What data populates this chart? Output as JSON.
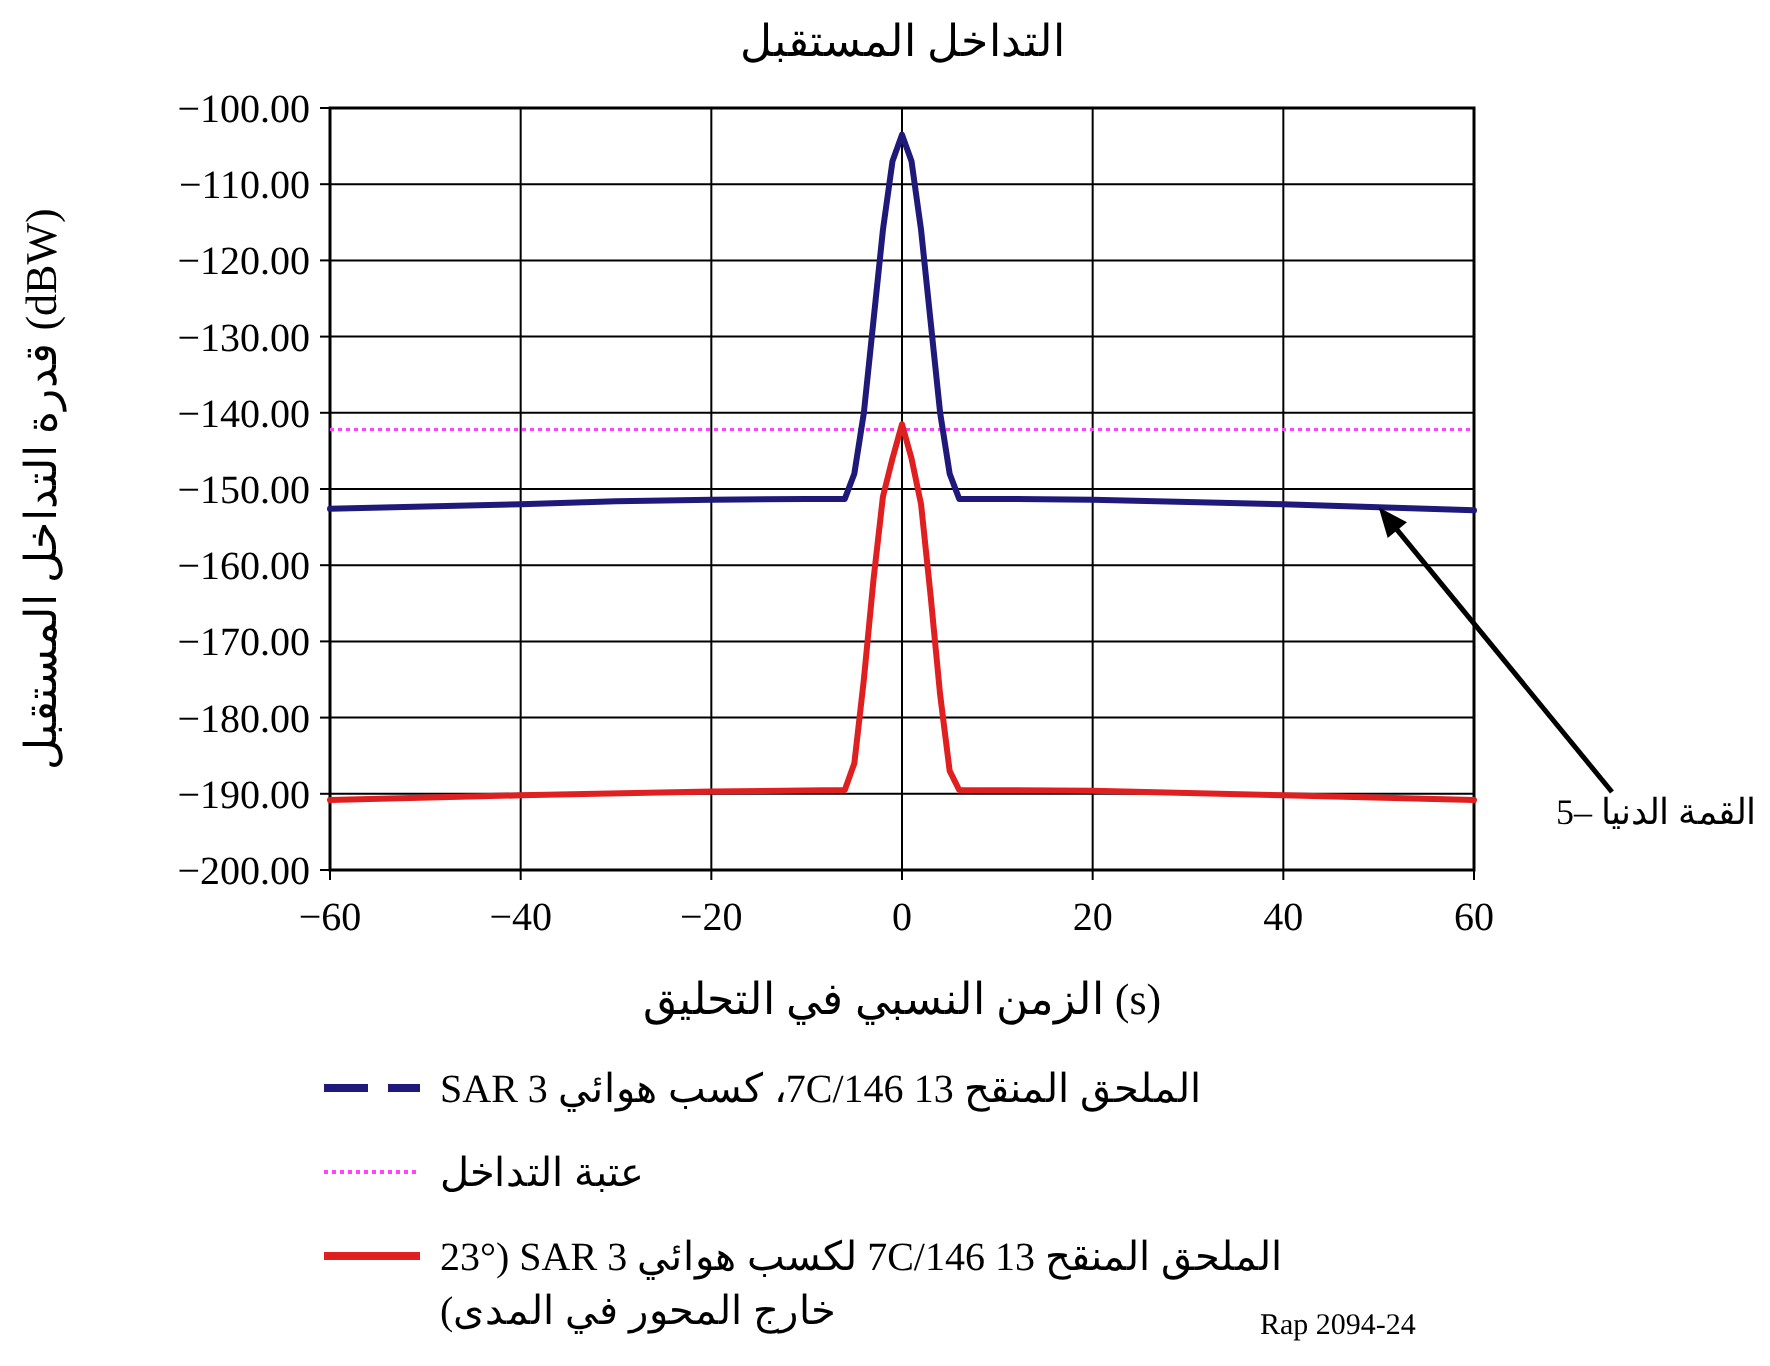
{
  "chart_data": {
    "type": "line",
    "title": "التداخل المستقبل",
    "xlabel": "الزمن النسبي في التحليق (s)",
    "ylabel": "قدرة التداخل المستقبل (dBW)",
    "xlim": [
      -60,
      60
    ],
    "xticks": [
      {
        "value": -60,
        "label": "−60"
      },
      {
        "value": -40,
        "label": "−40"
      },
      {
        "value": -20,
        "label": "−20"
      },
      0,
      20,
      40,
      60
    ],
    "ylim": [
      -200,
      -100
    ],
    "yticks": [
      {
        "value": -200,
        "label": "−200.00"
      },
      {
        "value": -190,
        "label": "−190.00"
      },
      {
        "value": -180,
        "label": "−180.00"
      },
      {
        "value": -170,
        "label": "−170.00"
      },
      {
        "value": -160,
        "label": "−160.00"
      },
      {
        "value": -150,
        "label": "−150.00"
      },
      {
        "value": -140,
        "label": "−140.00"
      },
      {
        "value": -130,
        "label": "−130.00"
      },
      {
        "value": -120,
        "label": "−120.00"
      },
      {
        "value": -110,
        "label": "−110.00"
      },
      {
        "value": -100,
        "label": "−100.00"
      }
    ],
    "grid": true,
    "legend": "bottom",
    "series": [
      {
        "name": "الملحق المنقح 13 7C/146، كسب هوائي SAR 3",
        "color": "#1f1a7a",
        "x": [
          -60,
          -50,
          -40,
          -30,
          -20,
          -10,
          -6,
          -5,
          -4,
          -3,
          -2,
          -1,
          0,
          1,
          2,
          3,
          4,
          5,
          6,
          10,
          20,
          30,
          40,
          50,
          60
        ],
        "values": [
          -152.6,
          -152.3,
          -152.0,
          -151.6,
          -151.4,
          -151.3,
          -151.3,
          -148,
          -140,
          -128,
          -116,
          -107,
          -103.5,
          -107,
          -116,
          -128,
          -140,
          -148,
          -151.3,
          -151.3,
          -151.4,
          -151.7,
          -152.0,
          -152.4,
          -152.8
        ]
      },
      {
        "name": "الملحق المنقح 13 7C/146 لكسب هوائي SAR 3 (23° خارج المحور في المدى)",
        "color": "#e02020",
        "x": [
          -60,
          -40,
          -20,
          -6,
          -5,
          -4,
          -3,
          -2,
          -1,
          0,
          1,
          2,
          3,
          4,
          5,
          6,
          20,
          40,
          60
        ],
        "values": [
          -190.8,
          -190.2,
          -189.7,
          -189.5,
          -186,
          -175,
          -162,
          -151,
          -146,
          -141.5,
          -146,
          -152,
          -164,
          -177,
          -187,
          -189.5,
          -189.6,
          -190.2,
          -190.8
        ]
      }
    ],
    "ref_lines": [
      {
        "axis": "y",
        "value": -142.2,
        "label": "عتبة التداخل",
        "color": "#ff44ff",
        "line_style": "dotted"
      }
    ],
    "annotations": [
      "القمة الدنيا –5",
      "Rap 2094-24"
    ]
  }
}
